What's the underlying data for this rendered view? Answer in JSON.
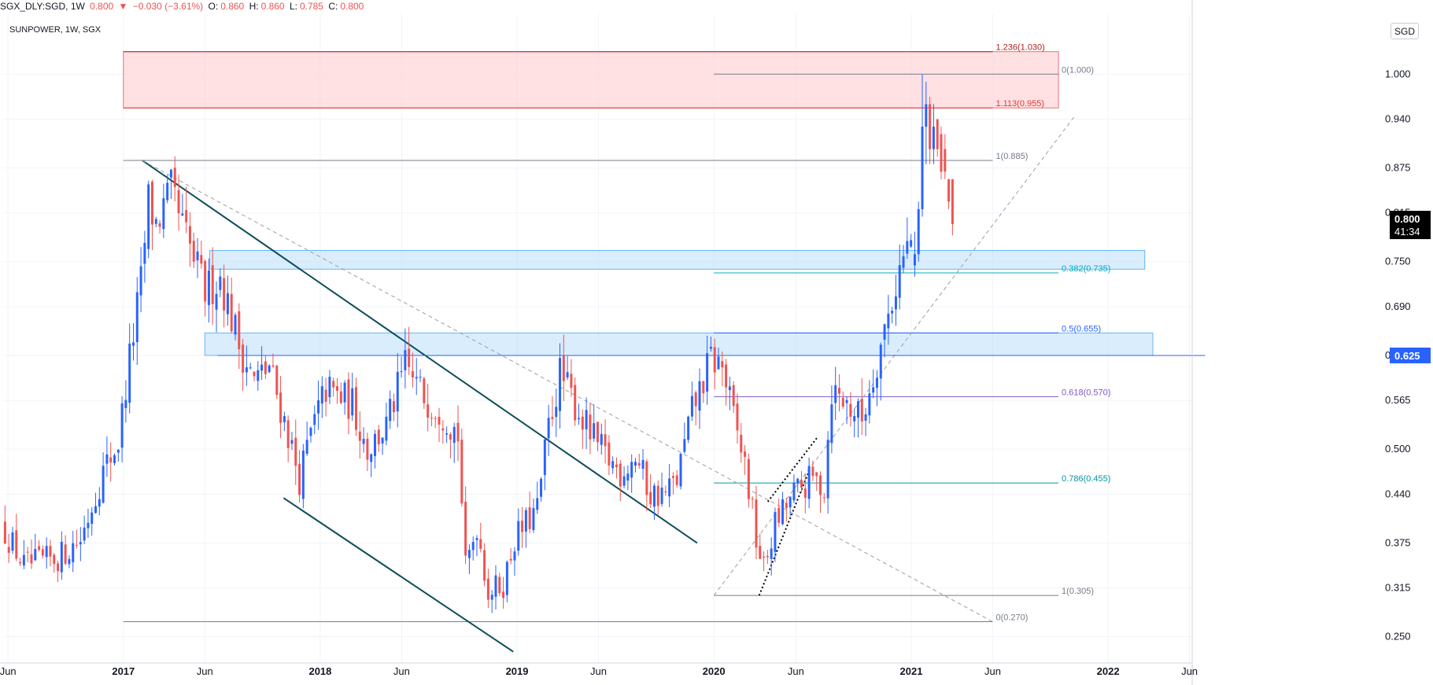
{
  "header": {
    "symbol": "SGX_DLY:SGD, 1W",
    "last": "0.800",
    "change_arrow": "▼",
    "change": "−0.030 (−3.61%)",
    "o_label": "O:",
    "o_value": "0.860",
    "h_label": "H:",
    "h_value": "0.860",
    "l_label": "L:",
    "l_value": "0.785",
    "c_label": "C:",
    "c_value": "0.800"
  },
  "pane_title": "SUNPOWER, 1W, SGX",
  "currency": "SGD",
  "colors": {
    "up": "#2962ff",
    "down": "#ef5350",
    "trendline": "#0d4d5c",
    "horizontal": "#2962ff",
    "zone_red": "#ffcdd2",
    "zone_blue": "#bbdefb",
    "price_label_bg": "#000000",
    "level_label_bg": "#2962ff"
  },
  "chart_data": {
    "type": "candlestick",
    "interval": "1W",
    "x_axis": {
      "start": "2016-05-23",
      "end": "2022-06-06",
      "ticks": [
        {
          "date": "2016-06-01",
          "label": "Jun",
          "bold": false
        },
        {
          "date": "2017-01-01",
          "label": "2017",
          "bold": true
        },
        {
          "date": "2017-06-01",
          "label": "Jun",
          "bold": false
        },
        {
          "date": "2018-01-01",
          "label": "2018",
          "bold": true
        },
        {
          "date": "2018-06-01",
          "label": "Jun",
          "bold": false
        },
        {
          "date": "2019-01-01",
          "label": "2019",
          "bold": true
        },
        {
          "date": "2019-06-01",
          "label": "Jun",
          "bold": false
        },
        {
          "date": "2020-01-01",
          "label": "2020",
          "bold": true
        },
        {
          "date": "2020-06-01",
          "label": "Jun",
          "bold": false
        },
        {
          "date": "2021-01-01",
          "label": "2021",
          "bold": true
        },
        {
          "date": "2021-06-01",
          "label": "Jun",
          "bold": false
        },
        {
          "date": "2022-01-01",
          "label": "2022",
          "bold": true
        },
        {
          "date": "2022-06-01",
          "label": "Jun",
          "bold": false
        }
      ]
    },
    "y_axis": {
      "range": [
        0.215,
        1.08
      ],
      "ticks": [
        "1.000",
        "0.940",
        "0.875",
        "0.815",
        "0.750",
        "0.690",
        "0.625",
        "0.565",
        "0.500",
        "0.440",
        "0.375",
        "0.315",
        "0.250"
      ],
      "current_price": "0.800",
      "countdown": "41:34",
      "marked_level": "0.625"
    },
    "grid": true,
    "price_path": [
      [
        "2016-05-23",
        0.4
      ],
      [
        "2016-07-04",
        0.345
      ],
      [
        "2016-09-05",
        0.355
      ],
      [
        "2016-10-17",
        0.38
      ],
      [
        "2016-11-28",
        0.47
      ],
      [
        "2016-12-26",
        0.51
      ],
      [
        "2017-01-16",
        0.62
      ],
      [
        "2017-02-06",
        0.72
      ],
      [
        "2017-02-20",
        0.83
      ],
      [
        "2017-03-06",
        0.8
      ],
      [
        "2017-04-03",
        0.84
      ],
      [
        "2017-05-01",
        0.78
      ],
      [
        "2017-06-05",
        0.71
      ],
      [
        "2017-07-03",
        0.73
      ],
      [
        "2017-08-07",
        0.64
      ],
      [
        "2017-09-04",
        0.59
      ],
      [
        "2017-10-02",
        0.61
      ],
      [
        "2017-11-06",
        0.52
      ],
      [
        "2017-11-27",
        0.46
      ],
      [
        "2017-12-18",
        0.52
      ],
      [
        "2018-01-15",
        0.58
      ],
      [
        "2018-03-05",
        0.56
      ],
      [
        "2018-04-02",
        0.5
      ],
      [
        "2018-05-07",
        0.53
      ],
      [
        "2018-06-11",
        0.61
      ],
      [
        "2018-07-16",
        0.57
      ],
      [
        "2018-08-20",
        0.55
      ],
      [
        "2018-09-17",
        0.52
      ],
      [
        "2018-10-01",
        0.34
      ],
      [
        "2018-10-22",
        0.4
      ],
      [
        "2018-11-12",
        0.31
      ],
      [
        "2018-12-10",
        0.32
      ],
      [
        "2018-12-31",
        0.38
      ],
      [
        "2019-02-11",
        0.42
      ],
      [
        "2019-03-04",
        0.53
      ],
      [
        "2019-03-25",
        0.6
      ],
      [
        "2019-04-22",
        0.56
      ],
      [
        "2019-05-20",
        0.52
      ],
      [
        "2019-06-17",
        0.49
      ],
      [
        "2019-07-15",
        0.47
      ],
      [
        "2019-08-12",
        0.49
      ],
      [
        "2019-09-09",
        0.44
      ],
      [
        "2019-10-07",
        0.44
      ],
      [
        "2019-10-28",
        0.46
      ],
      [
        "2019-11-25",
        0.55
      ],
      [
        "2019-12-30",
        0.62
      ],
      [
        "2020-01-20",
        0.61
      ],
      [
        "2020-02-10",
        0.54
      ],
      [
        "2020-03-02",
        0.48
      ],
      [
        "2020-03-23",
        0.38
      ],
      [
        "2020-04-06",
        0.34
      ],
      [
        "2020-04-27",
        0.4
      ],
      [
        "2020-06-01",
        0.44
      ],
      [
        "2020-07-06",
        0.46
      ],
      [
        "2020-07-27",
        0.45
      ],
      [
        "2020-08-10",
        0.58
      ],
      [
        "2020-09-07",
        0.56
      ],
      [
        "2020-10-05",
        0.54
      ],
      [
        "2020-10-26",
        0.6
      ],
      [
        "2020-11-23",
        0.68
      ],
      [
        "2020-12-14",
        0.74
      ],
      [
        "2021-01-04",
        0.78
      ],
      [
        "2021-01-18",
        0.9
      ],
      [
        "2021-01-25",
        0.96
      ],
      [
        "2021-02-08",
        0.92
      ],
      [
        "2021-02-22",
        0.92
      ],
      [
        "2021-03-08",
        0.86
      ],
      [
        "2021-03-15",
        0.8
      ]
    ],
    "last_candles": [
      {
        "date": "2021-01-04",
        "open": 0.745,
        "high": 0.79,
        "low": 0.73,
        "close": 0.76
      },
      {
        "date": "2021-01-11",
        "open": 0.76,
        "high": 0.83,
        "low": 0.75,
        "close": 0.82
      },
      {
        "date": "2021-01-18",
        "open": 0.82,
        "high": 1.0,
        "low": 0.81,
        "close": 0.93
      },
      {
        "date": "2021-01-25",
        "open": 0.93,
        "high": 0.99,
        "low": 0.88,
        "close": 0.96
      },
      {
        "date": "2021-02-01",
        "open": 0.96,
        "high": 0.97,
        "low": 0.88,
        "close": 0.9
      },
      {
        "date": "2021-02-08",
        "open": 0.9,
        "high": 0.96,
        "low": 0.88,
        "close": 0.93
      },
      {
        "date": "2021-02-15",
        "open": 0.94,
        "high": 0.94,
        "low": 0.89,
        "close": 0.9
      },
      {
        "date": "2021-02-22",
        "open": 0.92,
        "high": 0.93,
        "low": 0.86,
        "close": 0.87
      },
      {
        "date": "2021-03-01",
        "open": 0.9,
        "high": 0.92,
        "low": 0.86,
        "close": 0.87
      },
      {
        "date": "2021-03-08",
        "open": 0.86,
        "high": 0.86,
        "low": 0.82,
        "close": 0.83
      },
      {
        "date": "2021-03-15",
        "open": 0.86,
        "high": 0.86,
        "low": 0.785,
        "close": 0.8
      }
    ],
    "zones": [
      {
        "name": "red-resistance-zone",
        "start": "2017-01-01",
        "end": "2021-10-01",
        "top": 1.03,
        "bottom": 0.955,
        "color": "red"
      },
      {
        "name": "blue-zone-upper",
        "start": "2017-06-10",
        "end": "2022-03-10",
        "top": 0.765,
        "bottom": 0.74,
        "color": "blue"
      },
      {
        "name": "blue-zone-lower",
        "start": "2017-06-01",
        "end": "2022-03-25",
        "top": 0.655,
        "bottom": 0.625,
        "color": "blue"
      }
    ],
    "trendlines": [
      {
        "name": "descending-trendline",
        "from": [
          "2017-02-05",
          0.885
        ],
        "to": [
          "2019-12-01",
          0.375
        ],
        "style": "solid",
        "color": "trend"
      },
      {
        "name": "lower-channel-line",
        "from": [
          "2017-10-25",
          0.435
        ],
        "to": [
          "2018-12-25",
          0.23
        ],
        "style": "solid",
        "color": "trend"
      },
      {
        "name": "dashed-trend-down",
        "from": [
          "2017-02-05",
          0.885
        ],
        "to": [
          "2021-06-01",
          0.27
        ],
        "style": "dashed",
        "color": "#9e9e9e"
      },
      {
        "name": "dashed-trend-up",
        "from": [
          "2020-01-01",
          0.305
        ],
        "to": [
          "2021-11-01",
          0.945
        ],
        "style": "dashed",
        "color": "#9e9e9e"
      },
      {
        "name": "flag-line-upper",
        "from": [
          "2020-04-10",
          0.43
        ],
        "to": [
          "2020-07-10",
          0.515
        ],
        "style": "dotted",
        "color": "#000000"
      },
      {
        "name": "flag-line-lower",
        "from": [
          "2020-03-25",
          0.305
        ],
        "to": [
          "2020-06-25",
          0.47
        ],
        "style": "dotted",
        "color": "#000000"
      },
      {
        "name": "resistance-line",
        "from": [
          "2017-06-25",
          0.625
        ],
        "to": [
          "2022-06-30",
          0.625
        ],
        "style": "solid",
        "color": "horizontal"
      }
    ],
    "fib_upper": {
      "levels": [
        {
          "label": "1.236(1.030)",
          "value": 1.03,
          "color": "#b71c1c",
          "start": "2017-01-01"
        },
        {
          "label": "1.113(0.955)",
          "value": 0.955,
          "color": "#e53935",
          "start": "2017-01-01"
        },
        {
          "label": "1(0.885)",
          "value": 0.885,
          "color": "#787b86",
          "start": "2017-01-01"
        },
        {
          "label": "0(0.270)",
          "value": 0.27,
          "color": "#787b86",
          "start": "2017-01-01"
        }
      ],
      "end": "2021-06-01"
    },
    "fib_lower": {
      "levels": [
        {
          "label": "0(1.000)",
          "value": 1.0,
          "color": "#787b86"
        },
        {
          "label": "0.382(0.735)",
          "value": 0.735,
          "color": "#00acc1"
        },
        {
          "label": "0.5(0.655)",
          "value": 0.655,
          "color": "#2962ff"
        },
        {
          "label": "0.618(0.570)",
          "value": 0.57,
          "color": "#7e57c2"
        },
        {
          "label": "0.786(0.455)",
          "value": 0.455,
          "color": "#0097a7"
        },
        {
          "label": "1(0.305)",
          "value": 0.305,
          "color": "#787b86"
        }
      ],
      "start": "2020-01-01",
      "end": "2021-10-01"
    }
  }
}
